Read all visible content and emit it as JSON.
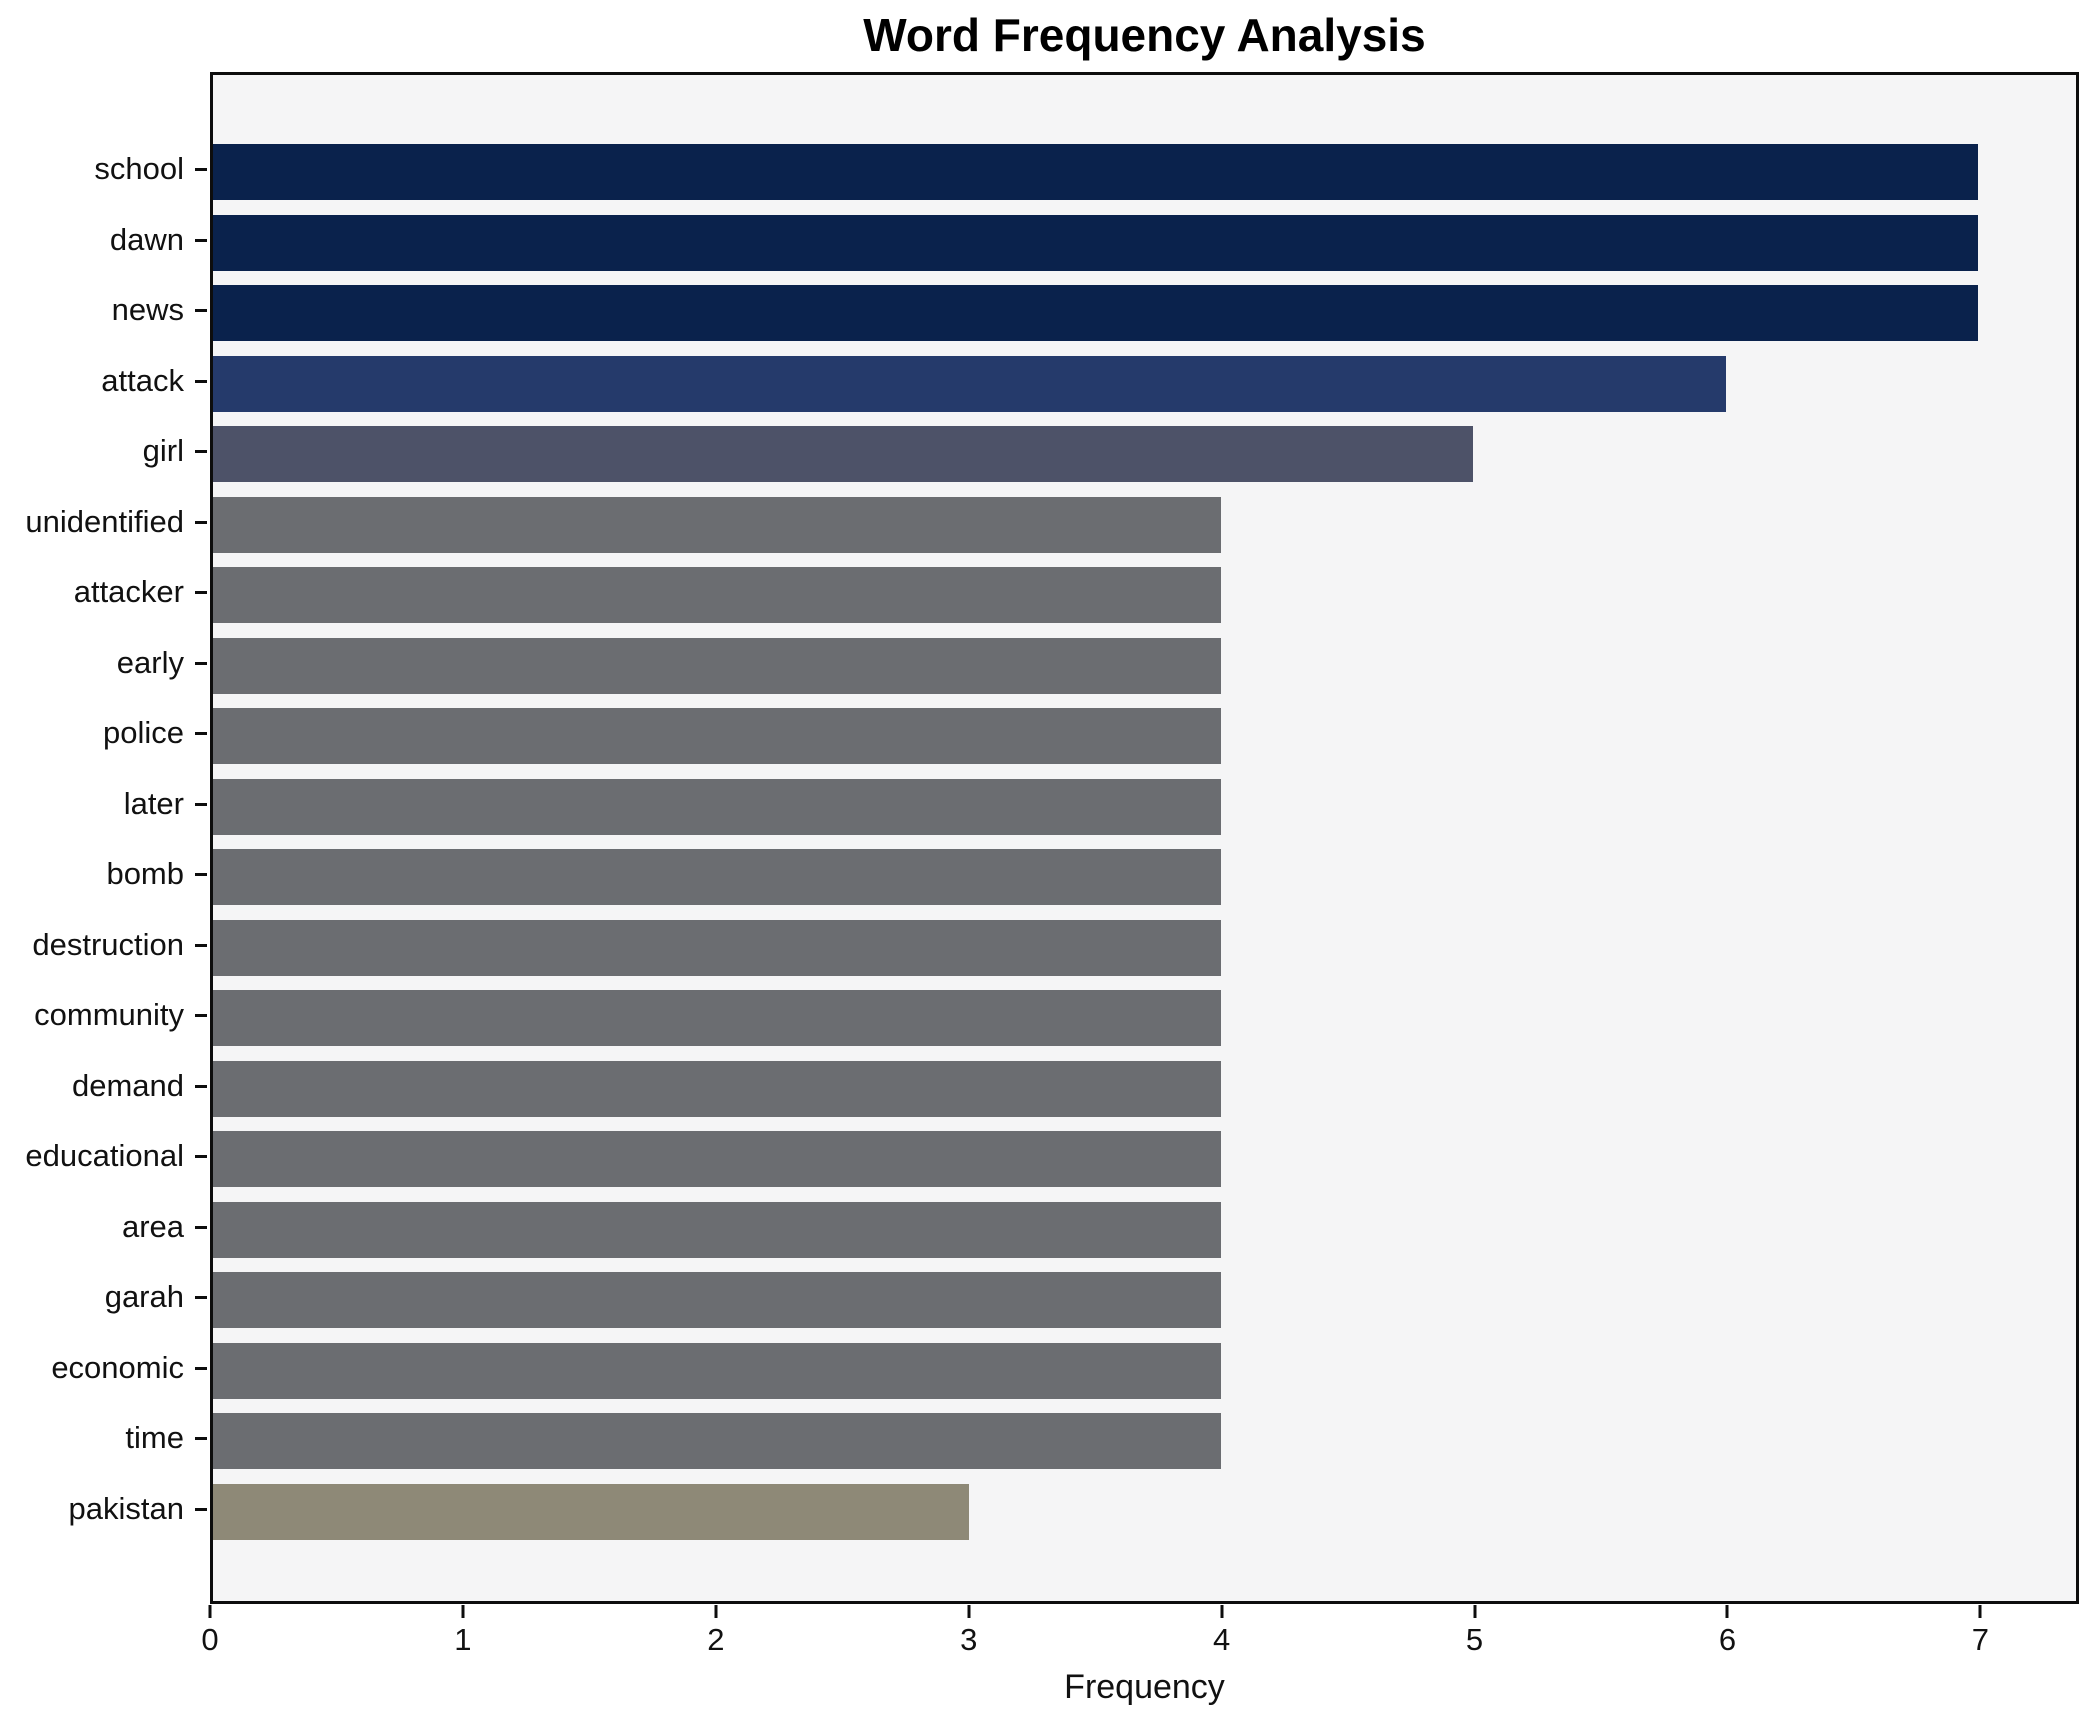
{
  "chart_data": {
    "type": "bar",
    "orientation": "horizontal",
    "title": "Word Frequency Analysis",
    "xlabel": "Frequency",
    "ylabel": "",
    "categories": [
      "school",
      "dawn",
      "news",
      "attack",
      "girl",
      "unidentified",
      "attacker",
      "early",
      "police",
      "later",
      "bomb",
      "destruction",
      "community",
      "demand",
      "educational",
      "area",
      "garah",
      "economic",
      "time",
      "pakistan"
    ],
    "values": [
      7,
      7,
      7,
      6,
      5,
      4,
      4,
      4,
      4,
      4,
      4,
      4,
      4,
      4,
      4,
      4,
      4,
      4,
      4,
      3
    ],
    "bar_colors": [
      "#0a224c",
      "#0a224c",
      "#0a224c",
      "#253a6b",
      "#4d5268",
      "#6b6d71",
      "#6b6d71",
      "#6b6d71",
      "#6b6d71",
      "#6b6d71",
      "#6b6d71",
      "#6b6d71",
      "#6b6d71",
      "#6b6d71",
      "#6b6d71",
      "#6b6d71",
      "#6b6d71",
      "#6b6d71",
      "#6b6d71",
      "#8e8977"
    ],
    "x_ticks": [
      0,
      1,
      2,
      3,
      4,
      5,
      6,
      7
    ],
    "xlim": [
      0,
      7.39
    ],
    "grid": false,
    "legend": null,
    "plot_background": "#f5f5f6",
    "figure_background": "#ffffff",
    "spine_color": "#0d0d0d"
  }
}
